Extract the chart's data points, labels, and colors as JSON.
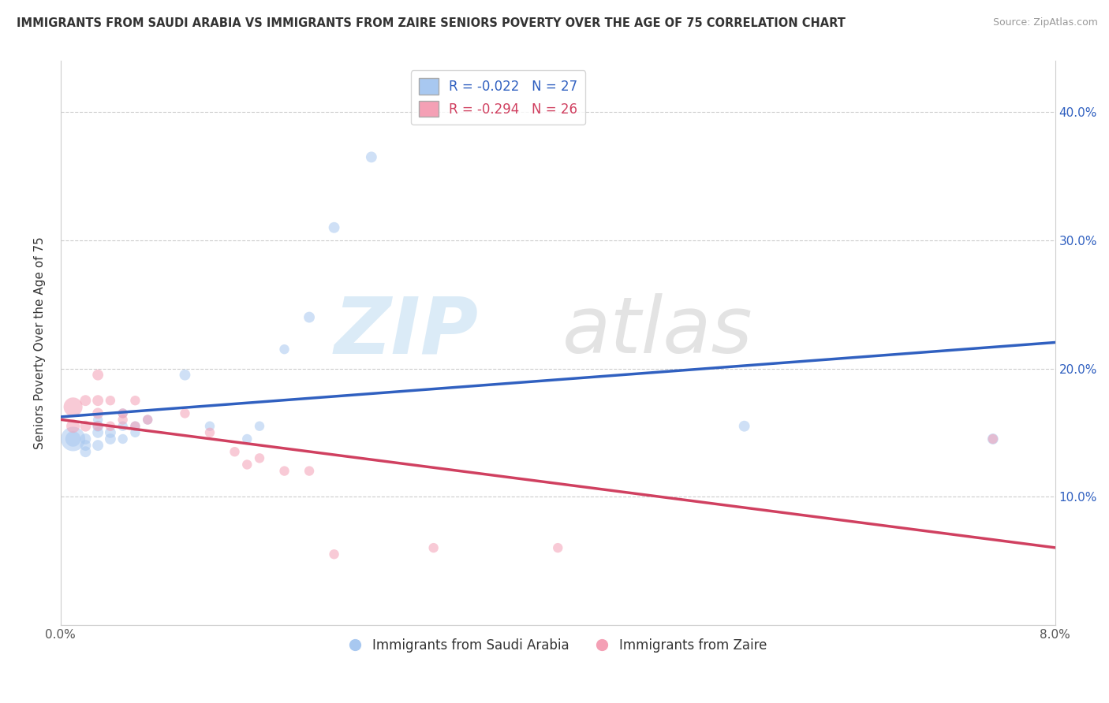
{
  "title": "IMMIGRANTS FROM SAUDI ARABIA VS IMMIGRANTS FROM ZAIRE SENIORS POVERTY OVER THE AGE OF 75 CORRELATION CHART",
  "source": "Source: ZipAtlas.com",
  "ylabel": "Seniors Poverty Over the Age of 75",
  "legend1_label": "R = -0.022   N = 27",
  "legend2_label": "R = -0.294   N = 26",
  "color_blue": "#a8c8f0",
  "color_pink": "#f4a0b5",
  "line_blue": "#3060c0",
  "line_pink": "#d04060",
  "y_ticks": [
    0.1,
    0.2,
    0.3,
    0.4
  ],
  "y_tick_labels": [
    "10.0%",
    "20.0%",
    "30.0%",
    "40.0%"
  ],
  "saudi_x": [
    0.001,
    0.001,
    0.002,
    0.002,
    0.002,
    0.003,
    0.003,
    0.003,
    0.003,
    0.004,
    0.004,
    0.005,
    0.005,
    0.005,
    0.006,
    0.006,
    0.007,
    0.01,
    0.012,
    0.015,
    0.016,
    0.018,
    0.02,
    0.022,
    0.025,
    0.055,
    0.075
  ],
  "saudi_y": [
    0.145,
    0.145,
    0.135,
    0.14,
    0.145,
    0.14,
    0.15,
    0.155,
    0.16,
    0.145,
    0.15,
    0.145,
    0.155,
    0.165,
    0.15,
    0.155,
    0.16,
    0.195,
    0.155,
    0.145,
    0.155,
    0.215,
    0.24,
    0.31,
    0.365,
    0.155,
    0.145
  ],
  "zaire_x": [
    0.001,
    0.001,
    0.002,
    0.002,
    0.003,
    0.003,
    0.003,
    0.003,
    0.004,
    0.004,
    0.005,
    0.005,
    0.006,
    0.006,
    0.007,
    0.01,
    0.012,
    0.014,
    0.015,
    0.016,
    0.018,
    0.02,
    0.022,
    0.03,
    0.04,
    0.075
  ],
  "zaire_y": [
    0.17,
    0.155,
    0.155,
    0.175,
    0.165,
    0.175,
    0.195,
    0.155,
    0.155,
    0.175,
    0.16,
    0.165,
    0.155,
    0.175,
    0.16,
    0.165,
    0.15,
    0.135,
    0.125,
    0.13,
    0.12,
    0.12,
    0.055,
    0.06,
    0.06,
    0.145
  ],
  "dot_size_saudi": [
    500,
    200,
    100,
    100,
    100,
    100,
    100,
    100,
    80,
    100,
    100,
    80,
    80,
    80,
    80,
    80,
    80,
    100,
    80,
    80,
    80,
    80,
    100,
    100,
    100,
    100,
    100
  ],
  "dot_size_zaire": [
    300,
    150,
    100,
    100,
    100,
    100,
    100,
    80,
    80,
    80,
    80,
    80,
    80,
    80,
    80,
    80,
    80,
    80,
    80,
    80,
    80,
    80,
    80,
    80,
    80,
    80
  ],
  "xlim": [
    0.0,
    0.08
  ],
  "ylim": [
    0.0,
    0.44
  ],
  "bg_color": "#ffffff",
  "grid_color": "#cccccc"
}
